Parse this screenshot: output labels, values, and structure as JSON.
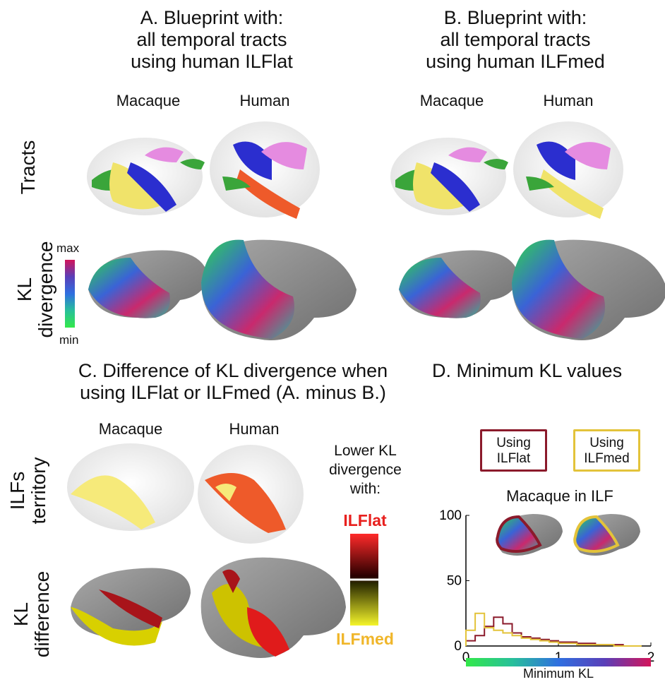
{
  "panel_a": {
    "title_lines": [
      "A.  Blueprint with:",
      "all temporal tracts",
      "using human ILFlat"
    ],
    "macaque": "Macaque",
    "human": "Human"
  },
  "panel_b": {
    "title_lines": [
      "B.  Blueprint with:",
      "all temporal tracts",
      "using human ILFmed"
    ],
    "macaque": "Macaque",
    "human": "Human"
  },
  "rows": {
    "tracts": "Tracts",
    "kl_lines": [
      "KL",
      "divergence"
    ]
  },
  "kl_scale": {
    "max": "max",
    "min": "min"
  },
  "panel_c": {
    "title_lines": [
      "C. Difference of KL divergence when",
      "using ILFlat or ILFmed (A. minus B.)"
    ],
    "macaque": "Macaque",
    "human": "Human",
    "row1_lines": [
      "ILFs",
      "territory"
    ],
    "row2_lines": [
      "KL",
      "difference"
    ],
    "legend_lines": [
      "Lower KL",
      "divergence",
      "with:"
    ],
    "ilflat": "ILFlat",
    "ilfmed": "ILFmed"
  },
  "panel_d": {
    "title": "D. Minimum KL values",
    "legend": [
      {
        "lines": [
          "Using",
          "ILFlat"
        ],
        "color": "#8b1a2b"
      },
      {
        "lines": [
          "Using",
          "ILFmed"
        ],
        "color": "#e3c33a"
      }
    ],
    "chart_title": "Macaque in ILF",
    "xlabel": "Minimum KL"
  },
  "chart_data": {
    "type": "line",
    "title": "Macaque in ILF",
    "xlabel": "Minimum KL",
    "xlim": [
      0,
      2
    ],
    "ylim": [
      0,
      100
    ],
    "xticks": [
      "0",
      "1",
      "2"
    ],
    "yticks": [
      "0",
      "50",
      "100"
    ],
    "bin_edges": [
      0,
      0.1,
      0.2,
      0.3,
      0.4,
      0.5,
      0.6,
      0.7,
      0.8,
      0.9,
      1.0,
      1.1,
      1.2,
      1.3,
      1.4,
      1.5,
      1.6,
      1.7,
      1.8
    ],
    "series": [
      {
        "name": "ILFlat",
        "color": "#8b1a2b",
        "values": [
          4,
          8,
          15,
          22,
          17,
          10,
          7,
          6,
          5,
          4,
          3,
          3,
          2,
          2,
          1,
          1,
          1,
          0
        ]
      },
      {
        "name": "ILFmed",
        "color": "#e3c33a",
        "values": [
          12,
          25,
          14,
          12,
          10,
          8,
          6,
          5,
          4,
          3,
          2,
          2,
          1,
          1,
          1,
          1,
          0,
          0
        ]
      }
    ]
  }
}
